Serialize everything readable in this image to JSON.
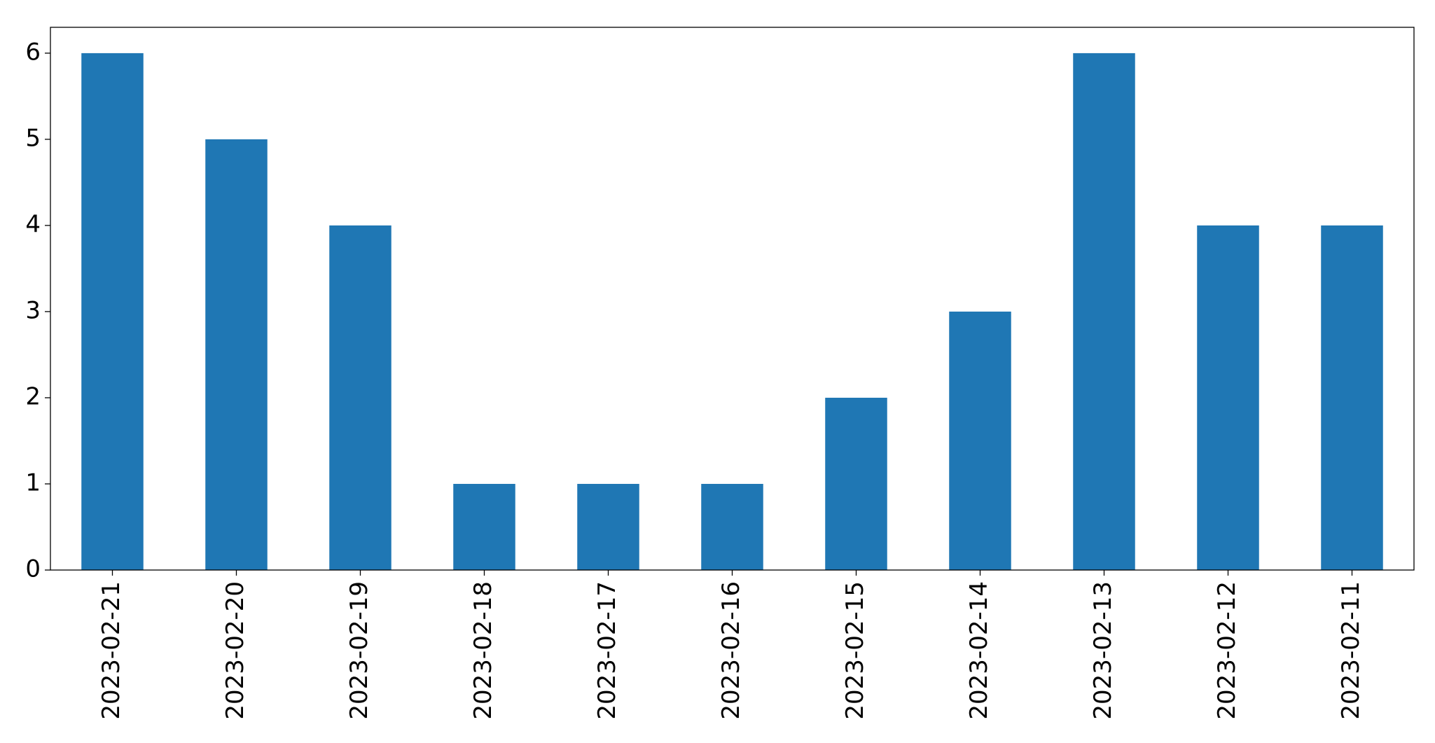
{
  "chart_data": {
    "type": "bar",
    "categories": [
      "2023-02-21",
      "2023-02-20",
      "2023-02-19",
      "2023-02-18",
      "2023-02-17",
      "2023-02-16",
      "2023-02-15",
      "2023-02-14",
      "2023-02-13",
      "2023-02-12",
      "2023-02-11"
    ],
    "values": [
      6,
      5,
      4,
      1,
      1,
      1,
      2,
      3,
      6,
      4,
      4
    ],
    "color": "#1f77b4",
    "ylim": [
      0,
      6.3
    ],
    "yticks": [
      0,
      1,
      2,
      3,
      4,
      5,
      6
    ],
    "grid": false
  }
}
